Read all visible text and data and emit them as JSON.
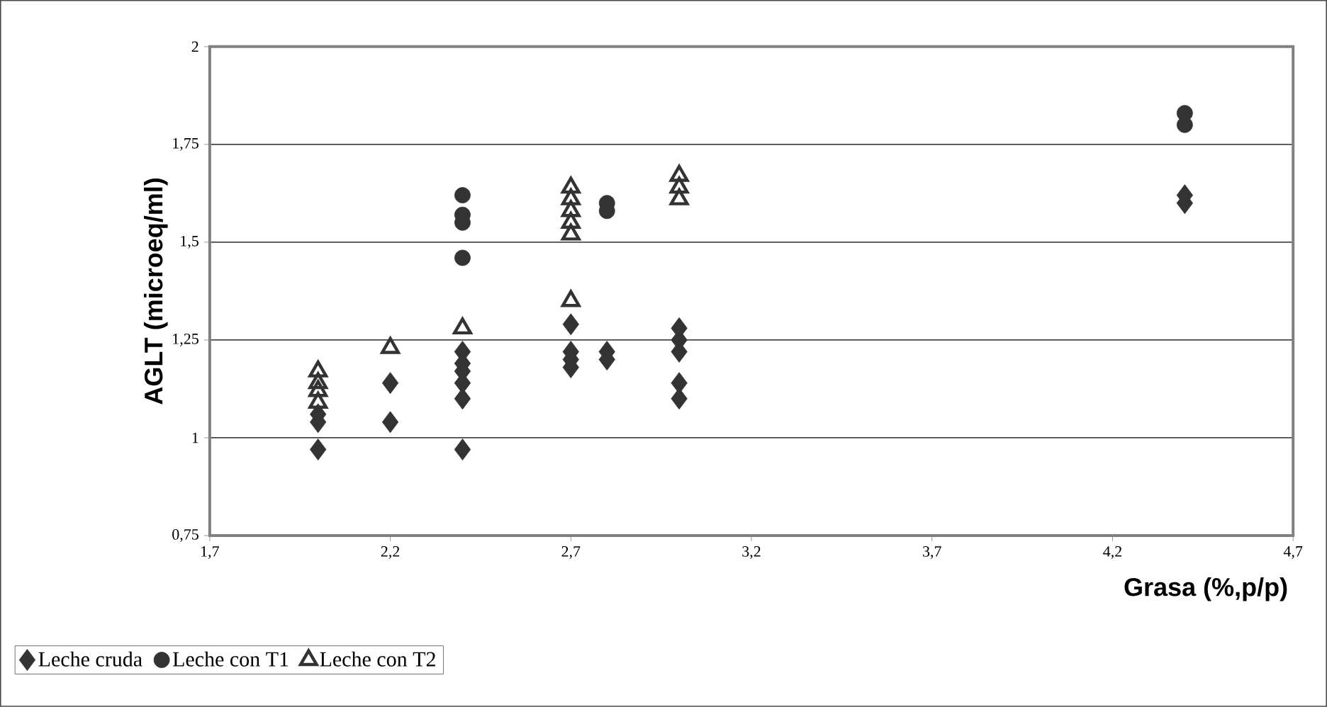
{
  "chart_data": {
    "type": "scatter",
    "xlabel": "Grasa (%,p/p)",
    "ylabel": "AGLT (microeq/ml)",
    "xlim": [
      1.7,
      4.7
    ],
    "ylim": [
      0.75,
      2
    ],
    "xticks": [
      {
        "value": 1.7,
        "label": "1,7"
      },
      {
        "value": 2.2,
        "label": "2,2"
      },
      {
        "value": 2.7,
        "label": "2,7"
      },
      {
        "value": 3.2,
        "label": "3,2"
      },
      {
        "value": 3.7,
        "label": "3,7"
      },
      {
        "value": 4.2,
        "label": "4,2"
      },
      {
        "value": 4.7,
        "label": "4,7"
      }
    ],
    "yticks": [
      {
        "value": 0.75,
        "label": "0,75"
      },
      1,
      {
        "value": 1.25,
        "label": "1,25"
      },
      {
        "value": 1.5,
        "label": "1,5"
      },
      {
        "value": 1.75,
        "label": "1,75"
      },
      2
    ],
    "grid": "y",
    "legend": "bottom left",
    "series": [
      {
        "name": "Leche cruda",
        "color": "#333333",
        "marker": "diamond",
        "x": [
          2.0,
          2.0,
          2.0,
          2.2,
          2.2,
          2.4,
          2.4,
          2.4,
          2.4,
          2.4,
          2.4,
          2.7,
          2.7,
          2.7,
          2.7,
          2.8,
          2.8,
          3.0,
          3.0,
          3.0,
          3.0,
          3.0,
          4.4,
          4.4
        ],
        "values": [
          0.97,
          1.04,
          1.06,
          1.04,
          1.14,
          0.97,
          1.1,
          1.14,
          1.17,
          1.19,
          1.22,
          1.18,
          1.2,
          1.22,
          1.29,
          1.2,
          1.22,
          1.1,
          1.14,
          1.22,
          1.25,
          1.28,
          1.6,
          1.62
        ]
      },
      {
        "name": "Leche con T1",
        "color": "#333333",
        "marker": "circle",
        "x": [
          2.4,
          2.4,
          2.4,
          2.4,
          2.8,
          2.8,
          4.4,
          4.4
        ],
        "values": [
          1.46,
          1.55,
          1.57,
          1.62,
          1.58,
          1.6,
          1.8,
          1.83
        ]
      },
      {
        "name": "Leche con T2",
        "color": "#333333",
        "marker": "triangle",
        "x": [
          2.0,
          2.0,
          2.0,
          2.0,
          2.2,
          2.4,
          2.7,
          2.7,
          2.7,
          2.7,
          2.7,
          2.7,
          3.0,
          3.0,
          3.0
        ],
        "values": [
          1.09,
          1.12,
          1.14,
          1.17,
          1.23,
          1.28,
          1.35,
          1.52,
          1.55,
          1.58,
          1.61,
          1.64,
          1.61,
          1.64,
          1.67
        ]
      }
    ]
  }
}
